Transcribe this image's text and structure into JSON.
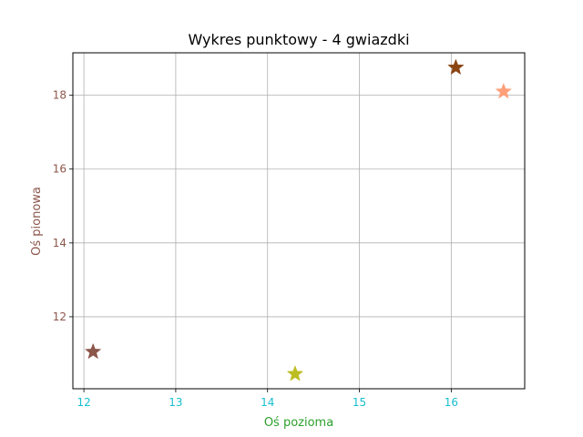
{
  "chart_data": {
    "type": "scatter",
    "title": "Wykres punktowy - 4 gwiazdki",
    "xlabel": "Oś pozioma",
    "ylabel": "Oś pionowa",
    "xlim": [
      11.88,
      16.8
    ],
    "ylim": [
      10.05,
      19.15
    ],
    "xticks": [
      12,
      13,
      14,
      15,
      16
    ],
    "yticks": [
      12,
      14,
      16,
      18
    ],
    "grid": true,
    "marker": "star",
    "points": [
      {
        "x": 12.1,
        "y": 11.05,
        "color": "#8c564b"
      },
      {
        "x": 14.3,
        "y": 10.45,
        "color": "#bcbd22"
      },
      {
        "x": 16.05,
        "y": 18.75,
        "color": "#8b4513"
      },
      {
        "x": 16.57,
        "y": 18.1,
        "color": "#ffa07a"
      }
    ],
    "colors": {
      "xlabel": "#2ca02c",
      "ylabel": "#8c564b",
      "xtick": "#17becf",
      "ytick": "#8c564b",
      "grid": "#b0b0b0",
      "axes": "#000000"
    }
  }
}
